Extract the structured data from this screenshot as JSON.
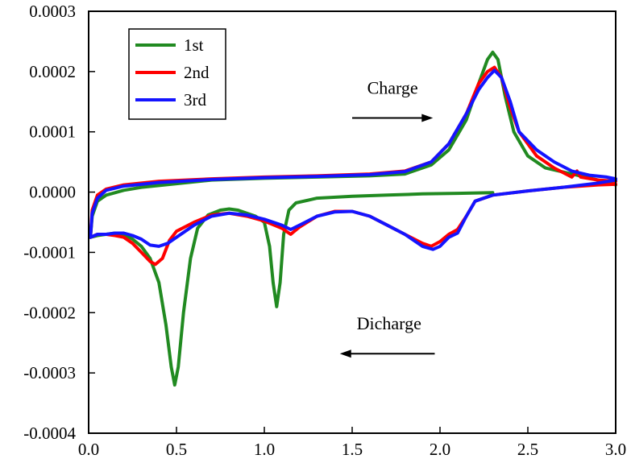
{
  "chart_data": {
    "type": "line",
    "xlim": [
      0.0,
      3.0
    ],
    "ylim": [
      -0.0004,
      0.0003
    ],
    "x_ticks": [
      0.0,
      0.5,
      1.0,
      1.5,
      2.0,
      2.5,
      3.0
    ],
    "x_tick_labels": [
      "0.0",
      "0.5",
      "1.0",
      "1.5",
      "2.0",
      "2.5",
      "3.0"
    ],
    "y_ticks": [
      0.0003,
      0.0002,
      0.0001,
      0.0,
      -0.0001,
      -0.0002,
      -0.0003,
      -0.0004
    ],
    "y_tick_labels": [
      "0.0003",
      "0.0002",
      "0.0001",
      "0.0000",
      "-0.0001",
      "-0.0002",
      "-0.0003",
      "-0.0004"
    ],
    "legend_position": "top-left",
    "grid": false,
    "series": [
      {
        "name": "1st",
        "color": "#218a21",
        "cathodic": [
          [
            0.01,
            -7.5e-05
          ],
          [
            0.05,
            -7.2e-05
          ],
          [
            0.1,
            -7e-05
          ],
          [
            0.15,
            -6.8e-05
          ],
          [
            0.2,
            -7e-05
          ],
          [
            0.25,
            -7.8e-05
          ],
          [
            0.3,
            -9e-05
          ],
          [
            0.35,
            -0.00011
          ],
          [
            0.4,
            -0.00015
          ],
          [
            0.44,
            -0.00022
          ],
          [
            0.47,
            -0.00029
          ],
          [
            0.49,
            -0.00032
          ],
          [
            0.51,
            -0.00029
          ],
          [
            0.54,
            -0.0002
          ],
          [
            0.58,
            -0.00011
          ],
          [
            0.62,
            -6e-05
          ],
          [
            0.68,
            -3.8e-05
          ],
          [
            0.75,
            -3e-05
          ],
          [
            0.8,
            -2.8e-05
          ],
          [
            0.85,
            -3e-05
          ],
          [
            0.9,
            -3.5e-05
          ],
          [
            0.95,
            -4e-05
          ],
          [
            1.0,
            -5e-05
          ],
          [
            1.03,
            -9e-05
          ],
          [
            1.05,
            -0.00015
          ],
          [
            1.07,
            -0.00019
          ],
          [
            1.09,
            -0.00015
          ],
          [
            1.11,
            -7e-05
          ],
          [
            1.14,
            -3e-05
          ],
          [
            1.18,
            -1.8e-05
          ],
          [
            1.3,
            -1e-05
          ],
          [
            1.5,
            -7e-06
          ],
          [
            1.7,
            -5e-06
          ],
          [
            1.9,
            -3e-06
          ],
          [
            2.1,
            -2e-06
          ],
          [
            2.3,
            -1e-06
          ]
        ],
        "anodic": [
          [
            0.01,
            -7.5e-05
          ],
          [
            0.02,
            -4e-05
          ],
          [
            0.05,
            -1.5e-05
          ],
          [
            0.1,
            -5e-06
          ],
          [
            0.2,
            3e-06
          ],
          [
            0.3,
            8e-06
          ],
          [
            0.5,
            1.4e-05
          ],
          [
            0.7,
            2e-05
          ],
          [
            1.0,
            2.3e-05
          ],
          [
            1.3,
            2.5e-05
          ],
          [
            1.6,
            2.7e-05
          ],
          [
            1.8,
            3e-05
          ],
          [
            1.95,
            4.5e-05
          ],
          [
            2.05,
            7e-05
          ],
          [
            2.15,
            0.00012
          ],
          [
            2.22,
            0.00018
          ],
          [
            2.27,
            0.00022
          ],
          [
            2.3,
            0.000232
          ],
          [
            2.33,
            0.00022
          ],
          [
            2.37,
            0.00016
          ],
          [
            2.42,
            0.0001
          ],
          [
            2.5,
            6e-05
          ],
          [
            2.6,
            4e-05
          ],
          [
            2.75,
            3e-05
          ],
          [
            2.9,
            2e-05
          ],
          [
            3.0,
            1.2e-05
          ]
        ]
      },
      {
        "name": "2nd",
        "color": "#ff0000",
        "cathodic": [
          [
            0.01,
            -7.5e-05
          ],
          [
            0.05,
            -7e-05
          ],
          [
            0.1,
            -7e-05
          ],
          [
            0.15,
            -7.2e-05
          ],
          [
            0.2,
            -7.5e-05
          ],
          [
            0.25,
            -8.5e-05
          ],
          [
            0.3,
            -0.0001
          ],
          [
            0.35,
            -0.000115
          ],
          [
            0.38,
            -0.00012
          ],
          [
            0.42,
            -0.00011
          ],
          [
            0.46,
            -8e-05
          ],
          [
            0.5,
            -6.5e-05
          ],
          [
            0.6,
            -5e-05
          ],
          [
            0.7,
            -3.8e-05
          ],
          [
            0.8,
            -3.5e-05
          ],
          [
            0.9,
            -4e-05
          ],
          [
            1.0,
            -4.8e-05
          ],
          [
            1.1,
            -6e-05
          ],
          [
            1.15,
            -7e-05
          ],
          [
            1.2,
            -5.8e-05
          ],
          [
            1.3,
            -4e-05
          ],
          [
            1.4,
            -3.2e-05
          ],
          [
            1.5,
            -3.2e-05
          ],
          [
            1.6,
            -4e-05
          ],
          [
            1.7,
            -5.5e-05
          ],
          [
            1.8,
            -7e-05
          ],
          [
            1.9,
            -8.5e-05
          ],
          [
            1.95,
            -9e-05
          ],
          [
            2.0,
            -8.2e-05
          ],
          [
            2.05,
            -7e-05
          ],
          [
            2.1,
            -6.2e-05
          ],
          [
            2.15,
            -4e-05
          ],
          [
            2.2,
            -1.5e-05
          ],
          [
            2.3,
            -5e-06
          ],
          [
            2.5,
            2e-06
          ],
          [
            2.7,
            8e-06
          ],
          [
            2.9,
            1.2e-05
          ],
          [
            3.0,
            1.3e-05
          ]
        ],
        "anodic": [
          [
            0.01,
            -7.5e-05
          ],
          [
            0.02,
            -3e-05
          ],
          [
            0.05,
            -5e-06
          ],
          [
            0.1,
            5e-06
          ],
          [
            0.2,
            1.2e-05
          ],
          [
            0.4,
            1.8e-05
          ],
          [
            0.7,
            2.2e-05
          ],
          [
            1.0,
            2.5e-05
          ],
          [
            1.3,
            2.7e-05
          ],
          [
            1.6,
            3e-05
          ],
          [
            1.8,
            3.5e-05
          ],
          [
            1.95,
            5e-05
          ],
          [
            2.05,
            8e-05
          ],
          [
            2.15,
            0.00013
          ],
          [
            2.22,
            0.00018
          ],
          [
            2.27,
            0.0002
          ],
          [
            2.31,
            0.000207
          ],
          [
            2.35,
            0.00019
          ],
          [
            2.4,
            0.00014
          ],
          [
            2.45,
            0.0001
          ],
          [
            2.55,
            6e-05
          ],
          [
            2.65,
            4e-05
          ],
          [
            2.75,
            2.5e-05
          ],
          [
            2.78,
            3.5e-05
          ],
          [
            2.8,
            2.5e-05
          ],
          [
            2.9,
            2e-05
          ],
          [
            3.0,
            1.8e-05
          ]
        ]
      },
      {
        "name": "3rd",
        "color": "#1414ff",
        "cathodic": [
          [
            0.01,
            -7.5e-05
          ],
          [
            0.05,
            -7e-05
          ],
          [
            0.1,
            -7e-05
          ],
          [
            0.15,
            -6.8e-05
          ],
          [
            0.2,
            -6.8e-05
          ],
          [
            0.25,
            -7.2e-05
          ],
          [
            0.3,
            -7.8e-05
          ],
          [
            0.35,
            -8.8e-05
          ],
          [
            0.4,
            -9e-05
          ],
          [
            0.45,
            -8.5e-05
          ],
          [
            0.5,
            -7.5e-05
          ],
          [
            0.6,
            -5.5e-05
          ],
          [
            0.7,
            -4e-05
          ],
          [
            0.8,
            -3.5e-05
          ],
          [
            0.9,
            -3.8e-05
          ],
          [
            1.0,
            -4.5e-05
          ],
          [
            1.1,
            -5.5e-05
          ],
          [
            1.15,
            -6.2e-05
          ],
          [
            1.2,
            -5.5e-05
          ],
          [
            1.3,
            -4e-05
          ],
          [
            1.4,
            -3.3e-05
          ],
          [
            1.5,
            -3.2e-05
          ],
          [
            1.6,
            -4e-05
          ],
          [
            1.7,
            -5.5e-05
          ],
          [
            1.8,
            -7e-05
          ],
          [
            1.9,
            -9e-05
          ],
          [
            1.96,
            -9.5e-05
          ],
          [
            2.0,
            -9e-05
          ],
          [
            2.05,
            -7.5e-05
          ],
          [
            2.1,
            -6.8e-05
          ],
          [
            2.15,
            -4e-05
          ],
          [
            2.2,
            -1.5e-05
          ],
          [
            2.3,
            -5e-06
          ],
          [
            2.5,
            2e-06
          ],
          [
            2.7,
            8e-06
          ],
          [
            2.9,
            1.5e-05
          ],
          [
            3.0,
            2e-05
          ]
        ],
        "anodic": [
          [
            0.01,
            -7.5e-05
          ],
          [
            0.02,
            -3.5e-05
          ],
          [
            0.05,
            -1e-05
          ],
          [
            0.1,
            3e-06
          ],
          [
            0.2,
            1e-05
          ],
          [
            0.4,
            1.6e-05
          ],
          [
            0.7,
            2.1e-05
          ],
          [
            1.0,
            2.4e-05
          ],
          [
            1.3,
            2.6e-05
          ],
          [
            1.6,
            2.9e-05
          ],
          [
            1.8,
            3.4e-05
          ],
          [
            1.95,
            5e-05
          ],
          [
            2.05,
            8e-05
          ],
          [
            2.15,
            0.00013
          ],
          [
            2.22,
            0.00017
          ],
          [
            2.27,
            0.00019
          ],
          [
            2.31,
            0.000202
          ],
          [
            2.35,
            0.00019
          ],
          [
            2.4,
            0.00015
          ],
          [
            2.45,
            0.0001
          ],
          [
            2.55,
            7e-05
          ],
          [
            2.65,
            5e-05
          ],
          [
            2.75,
            3.5e-05
          ],
          [
            2.85,
            2.8e-05
          ],
          [
            2.95,
            2.5e-05
          ],
          [
            3.0,
            2.2e-05
          ]
        ]
      }
    ],
    "annotations": [
      {
        "text": "Charge",
        "direction": "right",
        "x": 1.73,
        "y": 0.000163,
        "arrow_from": 1.5,
        "arrow_to": 1.96,
        "arrow_y": 0.000123
      },
      {
        "text": "Dicharge",
        "direction": "left",
        "x": 1.71,
        "y": -0.000228,
        "arrow_from": 1.97,
        "arrow_to": 1.43,
        "arrow_y": -0.000268
      }
    ]
  }
}
